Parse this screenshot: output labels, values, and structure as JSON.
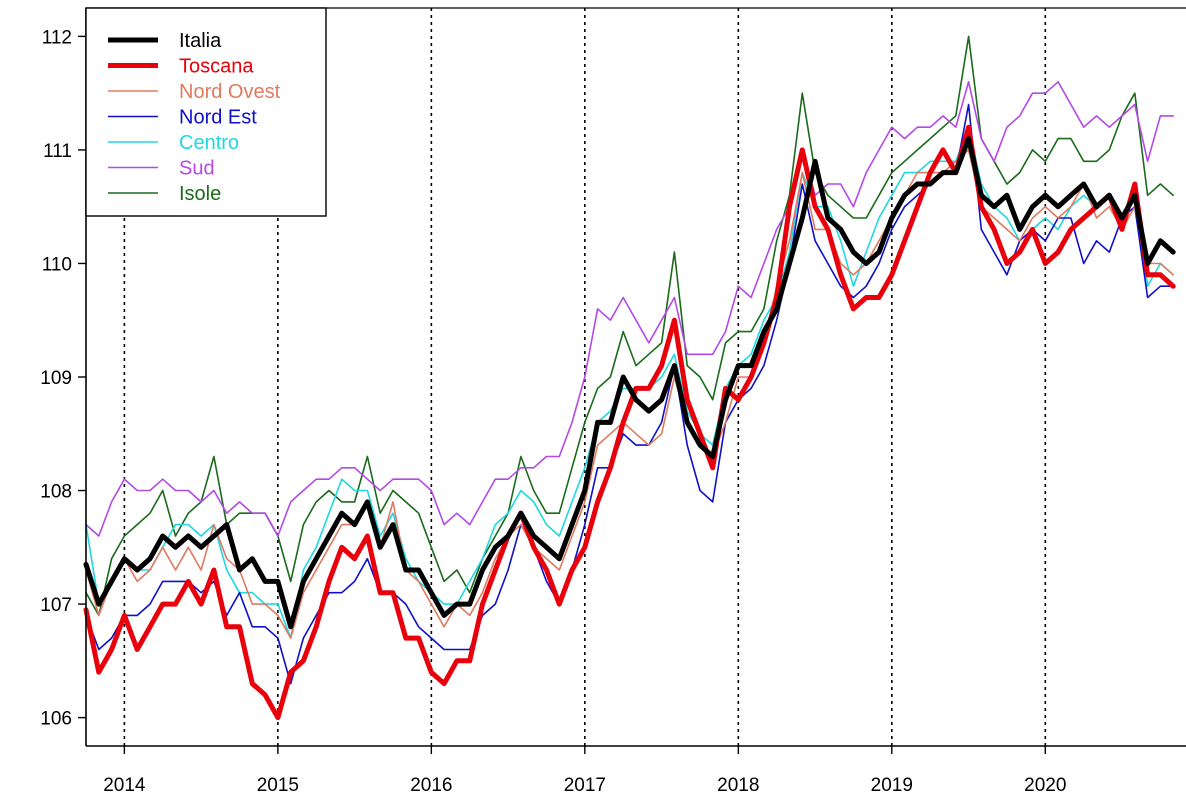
{
  "chart_data": {
    "type": "line",
    "title": "",
    "xlabel": "",
    "ylabel": "",
    "x_start": "2013-10",
    "frequency": "monthly",
    "xlim": [
      "2013-10",
      "2020-12"
    ],
    "ylim": [
      105.75,
      112.25
    ],
    "y_ticks": [
      106,
      107,
      108,
      109,
      110,
      111,
      112
    ],
    "x_ticks": [
      "2014",
      "2015",
      "2016",
      "2017",
      "2018",
      "2019",
      "2020"
    ],
    "x_gridlines": "vertical dotted at each January",
    "legend_position": "top-left",
    "series": [
      {
        "name": "Italia",
        "color": "#000000",
        "width": 5,
        "values": [
          107.35,
          107.0,
          107.2,
          107.4,
          107.3,
          107.4,
          107.6,
          107.5,
          107.6,
          107.5,
          107.6,
          107.7,
          107.3,
          107.4,
          107.2,
          107.2,
          106.8,
          107.2,
          107.4,
          107.6,
          107.8,
          107.7,
          107.9,
          107.5,
          107.7,
          107.3,
          107.3,
          107.1,
          106.9,
          107.0,
          107.0,
          107.3,
          107.5,
          107.6,
          107.8,
          107.6,
          107.5,
          107.4,
          107.7,
          108.0,
          108.6,
          108.6,
          109.0,
          108.8,
          108.7,
          108.8,
          109.1,
          108.6,
          108.4,
          108.3,
          108.8,
          109.1,
          109.1,
          109.4,
          109.6,
          110.0,
          110.4,
          110.9,
          110.4,
          110.3,
          110.1,
          110.0,
          110.1,
          110.4,
          110.6,
          110.7,
          110.7,
          110.8,
          110.8,
          111.1,
          110.6,
          110.5,
          110.6,
          110.3,
          110.5,
          110.6,
          110.5,
          110.6,
          110.7,
          110.5,
          110.6,
          110.4,
          110.6,
          110.0,
          110.2,
          110.1
        ]
      },
      {
        "name": "Toscana",
        "color": "#e8000b",
        "width": 5,
        "values": [
          106.95,
          106.4,
          106.6,
          106.9,
          106.6,
          106.8,
          107.0,
          107.0,
          107.2,
          107.0,
          107.3,
          106.8,
          106.8,
          106.3,
          106.2,
          106.0,
          106.4,
          106.5,
          106.8,
          107.2,
          107.5,
          107.4,
          107.6,
          107.1,
          107.1,
          106.7,
          106.7,
          106.4,
          106.3,
          106.5,
          106.5,
          107.0,
          107.3,
          107.6,
          107.8,
          107.5,
          107.3,
          107.0,
          107.3,
          107.5,
          107.9,
          108.2,
          108.6,
          108.9,
          108.9,
          109.1,
          109.5,
          108.8,
          108.5,
          108.2,
          108.9,
          108.8,
          109.0,
          109.3,
          109.7,
          110.5,
          111.0,
          110.5,
          110.3,
          109.9,
          109.6,
          109.7,
          109.7,
          109.9,
          110.2,
          110.5,
          110.8,
          111.0,
          110.8,
          111.2,
          110.5,
          110.3,
          110.0,
          110.1,
          110.3,
          110.0,
          110.1,
          110.3,
          110.4,
          110.5,
          110.6,
          110.3,
          110.7,
          109.9,
          109.9,
          109.8
        ]
      },
      {
        "name": "Nord Ovest",
        "color": "#e07a5f",
        "width": 1.6,
        "values": [
          107.3,
          106.9,
          107.2,
          107.4,
          107.2,
          107.3,
          107.5,
          107.3,
          107.5,
          107.3,
          107.7,
          107.4,
          107.3,
          107.0,
          107.0,
          106.9,
          106.7,
          107.1,
          107.3,
          107.5,
          107.7,
          107.7,
          107.9,
          107.5,
          107.9,
          107.3,
          107.2,
          107.0,
          106.8,
          107.0,
          106.9,
          107.1,
          107.4,
          107.6,
          107.7,
          107.5,
          107.4,
          107.3,
          107.6,
          107.9,
          108.4,
          108.5,
          108.6,
          108.5,
          108.4,
          108.5,
          109.0,
          108.6,
          108.4,
          108.3,
          108.6,
          109.0,
          109.0,
          109.3,
          109.8,
          110.2,
          110.8,
          110.3,
          110.3,
          110.0,
          109.9,
          110.0,
          110.2,
          110.4,
          110.6,
          110.8,
          110.8,
          110.8,
          110.9,
          111.0,
          110.5,
          110.4,
          110.3,
          110.2,
          110.4,
          110.5,
          110.4,
          110.5,
          110.7,
          110.4,
          110.5,
          110.3,
          110.5,
          110.0,
          110.0,
          109.9
        ]
      },
      {
        "name": "Nord Est",
        "color": "#1010c8",
        "width": 1.6,
        "values": [
          106.9,
          106.6,
          106.7,
          106.9,
          106.9,
          107.0,
          107.2,
          107.2,
          107.2,
          107.1,
          107.2,
          106.9,
          107.1,
          106.8,
          106.8,
          106.7,
          106.3,
          106.7,
          106.9,
          107.1,
          107.1,
          107.2,
          107.4,
          107.1,
          107.1,
          107.0,
          106.8,
          106.7,
          106.6,
          106.6,
          106.6,
          106.9,
          107.0,
          107.3,
          107.7,
          107.5,
          107.2,
          107.0,
          107.3,
          107.7,
          108.2,
          108.2,
          108.5,
          108.4,
          108.4,
          108.6,
          109.1,
          108.4,
          108.0,
          107.9,
          108.6,
          108.8,
          108.9,
          109.1,
          109.5,
          110.0,
          110.7,
          110.2,
          110.0,
          109.8,
          109.7,
          109.8,
          110.0,
          110.3,
          110.5,
          110.6,
          110.7,
          110.8,
          110.8,
          111.4,
          110.3,
          110.1,
          109.9,
          110.2,
          110.3,
          110.2,
          110.4,
          110.4,
          110.0,
          110.2,
          110.1,
          110.4,
          110.5,
          109.7,
          109.8,
          109.8
        ]
      },
      {
        "name": "Centro",
        "color": "#1fd8e0",
        "width": 1.6,
        "values": [
          107.7,
          107.0,
          107.2,
          107.4,
          107.3,
          107.3,
          107.5,
          107.7,
          107.7,
          107.6,
          107.7,
          107.3,
          107.1,
          107.1,
          107.0,
          107.0,
          106.7,
          107.3,
          107.5,
          107.8,
          108.1,
          108.0,
          108.0,
          107.6,
          107.8,
          107.4,
          107.2,
          107.1,
          107.0,
          107.0,
          107.2,
          107.4,
          107.7,
          107.8,
          108.0,
          107.9,
          107.7,
          107.6,
          107.9,
          108.2,
          108.6,
          108.7,
          108.9,
          108.9,
          108.9,
          109.0,
          109.2,
          108.7,
          108.5,
          108.4,
          108.9,
          109.1,
          109.2,
          109.5,
          109.7,
          110.1,
          110.8,
          110.5,
          110.5,
          110.2,
          109.8,
          110.1,
          110.4,
          110.6,
          110.8,
          110.8,
          110.9,
          110.9,
          110.9,
          111.2,
          110.7,
          110.5,
          110.4,
          110.2,
          110.3,
          110.4,
          110.3,
          110.5,
          110.6,
          110.5,
          110.6,
          110.4,
          110.7,
          109.8,
          110.0,
          109.9
        ]
      },
      {
        "name": "Sud",
        "color": "#b449e8",
        "width": 1.6,
        "values": [
          107.7,
          107.6,
          107.9,
          108.1,
          108.0,
          108.0,
          108.1,
          108.0,
          108.0,
          107.9,
          108.0,
          107.8,
          107.9,
          107.8,
          107.8,
          107.6,
          107.9,
          108.0,
          108.1,
          108.1,
          108.2,
          108.2,
          108.1,
          108.0,
          108.1,
          108.1,
          108.1,
          108.0,
          107.7,
          107.8,
          107.7,
          107.9,
          108.1,
          108.1,
          108.2,
          108.2,
          108.3,
          108.3,
          108.6,
          109.0,
          109.6,
          109.5,
          109.7,
          109.5,
          109.3,
          109.5,
          109.7,
          109.2,
          109.2,
          109.2,
          109.4,
          109.8,
          109.7,
          110.0,
          110.3,
          110.5,
          111.0,
          110.6,
          110.7,
          110.7,
          110.5,
          110.8,
          111.0,
          111.2,
          111.1,
          111.2,
          111.2,
          111.3,
          111.2,
          111.6,
          111.1,
          110.9,
          111.2,
          111.3,
          111.5,
          111.5,
          111.6,
          111.4,
          111.2,
          111.3,
          111.2,
          111.3,
          111.4,
          110.9,
          111.3,
          111.3
        ]
      },
      {
        "name": "Isole",
        "color": "#1a6b1a",
        "width": 1.6,
        "values": [
          107.1,
          106.9,
          107.4,
          107.6,
          107.7,
          107.8,
          108.0,
          107.6,
          107.8,
          107.9,
          108.3,
          107.7,
          107.8,
          107.8,
          107.8,
          107.6,
          107.2,
          107.7,
          107.9,
          108.0,
          107.9,
          107.9,
          108.3,
          107.8,
          108.0,
          107.9,
          107.8,
          107.5,
          107.2,
          107.3,
          107.1,
          107.4,
          107.6,
          107.8,
          108.3,
          108.0,
          107.8,
          107.8,
          108.2,
          108.6,
          108.9,
          109.0,
          109.4,
          109.1,
          109.2,
          109.3,
          110.1,
          109.1,
          109.0,
          108.8,
          109.3,
          109.4,
          109.4,
          109.6,
          110.2,
          110.6,
          111.5,
          110.8,
          110.6,
          110.5,
          110.4,
          110.4,
          110.6,
          110.8,
          110.9,
          111.0,
          111.1,
          111.2,
          111.3,
          112.0,
          111.1,
          110.9,
          110.7,
          110.8,
          111.0,
          110.9,
          111.1,
          111.1,
          110.9,
          110.9,
          111.0,
          111.3,
          111.5,
          110.6,
          110.7,
          110.6
        ]
      }
    ]
  }
}
